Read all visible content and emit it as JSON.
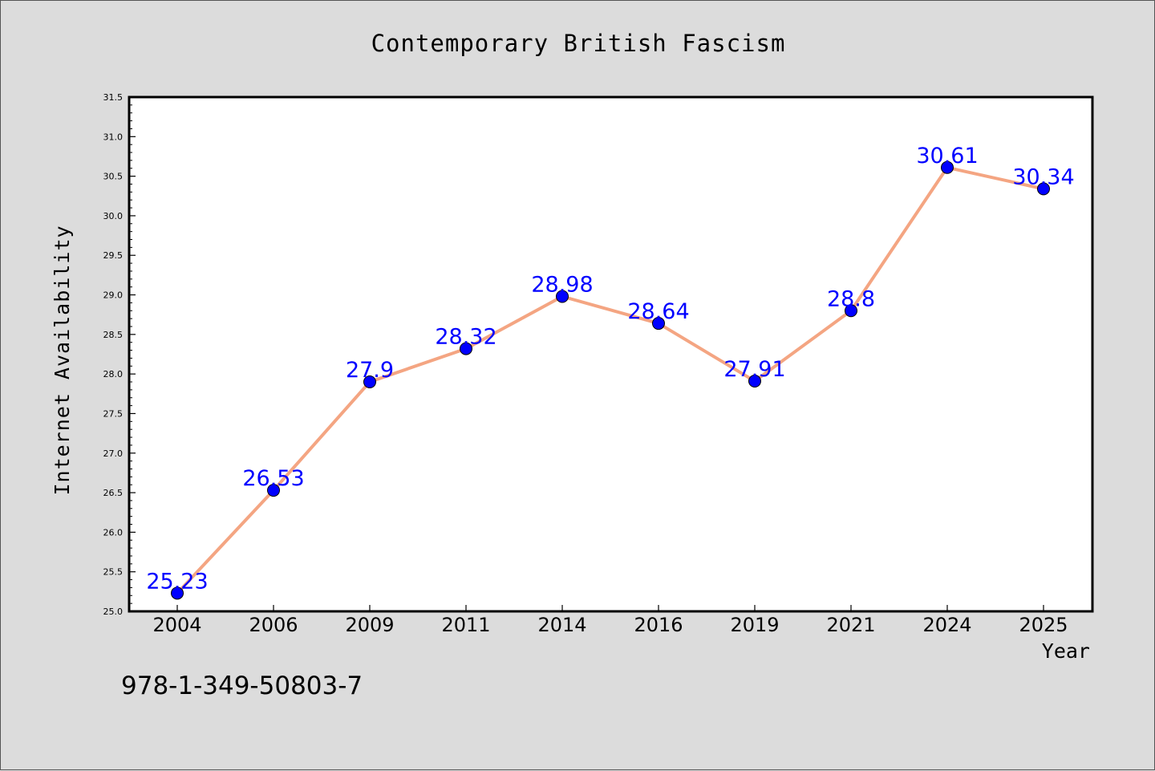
{
  "page": {
    "isbn": "978-1-349-50803-7"
  },
  "colors": {
    "background": "#dcdcdc",
    "plot_background": "#ffffff",
    "line": "#f4a582",
    "marker": "#0000ff",
    "data_label": "#0000ff",
    "text": "#000000"
  },
  "chart_data": {
    "type": "line",
    "title": "Contemporary British Fascism",
    "xlabel": "Year",
    "ylabel": "Internet Availability",
    "categories": [
      "2004",
      "2006",
      "2009",
      "2011",
      "2014",
      "2016",
      "2019",
      "2021",
      "2024",
      "2025"
    ],
    "series": [
      {
        "values": [
          25.23,
          26.53,
          27.9,
          28.32,
          28.98,
          28.64,
          27.91,
          28.8,
          30.61,
          30.34
        ],
        "data_labels": [
          "25.23",
          "26.53",
          "27.9",
          "28.32",
          "28.98",
          "28.64",
          "27.91",
          "28.8",
          "30.61",
          "30.34"
        ]
      }
    ],
    "ylim": [
      25.0,
      31.5
    ],
    "yticks": [
      "25.0",
      "25.5",
      "26.0",
      "26.5",
      "27.0",
      "27.5",
      "28.0",
      "28.5",
      "29.0",
      "29.5",
      "30.0",
      "30.5",
      "31.0",
      "31.5"
    ],
    "grid": false,
    "legend": "none"
  }
}
